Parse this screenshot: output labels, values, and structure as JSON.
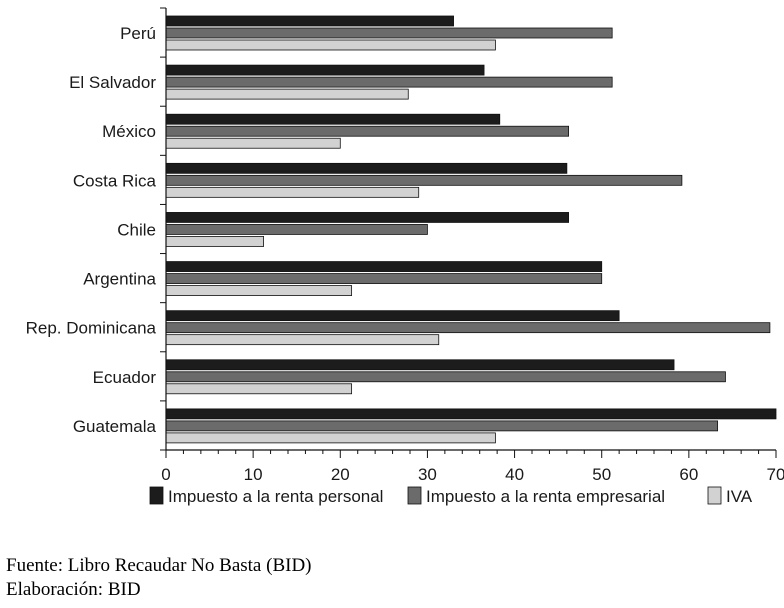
{
  "chart_data": {
    "type": "bar",
    "orientation": "horizontal",
    "categories": [
      "Perú",
      "El Salvador",
      "México",
      "Costa Rica",
      "Chile",
      "Argentina",
      "Rep. Dominicana",
      "Ecuador",
      "Guatemala"
    ],
    "series": [
      {
        "name": "Impuesto a la renta personal",
        "color": "#1c1c1c",
        "values": [
          33,
          36.5,
          38.3,
          46,
          46.2,
          50,
          52,
          58.3,
          70
        ]
      },
      {
        "name": "Impuesto a la renta empresarial",
        "color": "#6b6b6b",
        "values": [
          51.2,
          51.2,
          46.2,
          59.2,
          30,
          50,
          69.3,
          64.2,
          63.3
        ]
      },
      {
        "name": "IVA",
        "color": "#d2d2d2",
        "values": [
          37.8,
          27.8,
          20,
          29,
          11.2,
          21.3,
          31.3,
          21.3,
          37.8
        ]
      }
    ],
    "xlim": [
      0,
      70
    ],
    "xticks": [
      "0",
      "10",
      "20",
      "30",
      "40",
      "50",
      "60",
      "70"
    ],
    "grid": false,
    "legend_position": "bottom"
  },
  "footer": {
    "source": "Fuente: Libro Recaudar No Basta (BID)",
    "credit": "Elaboración: BID"
  }
}
